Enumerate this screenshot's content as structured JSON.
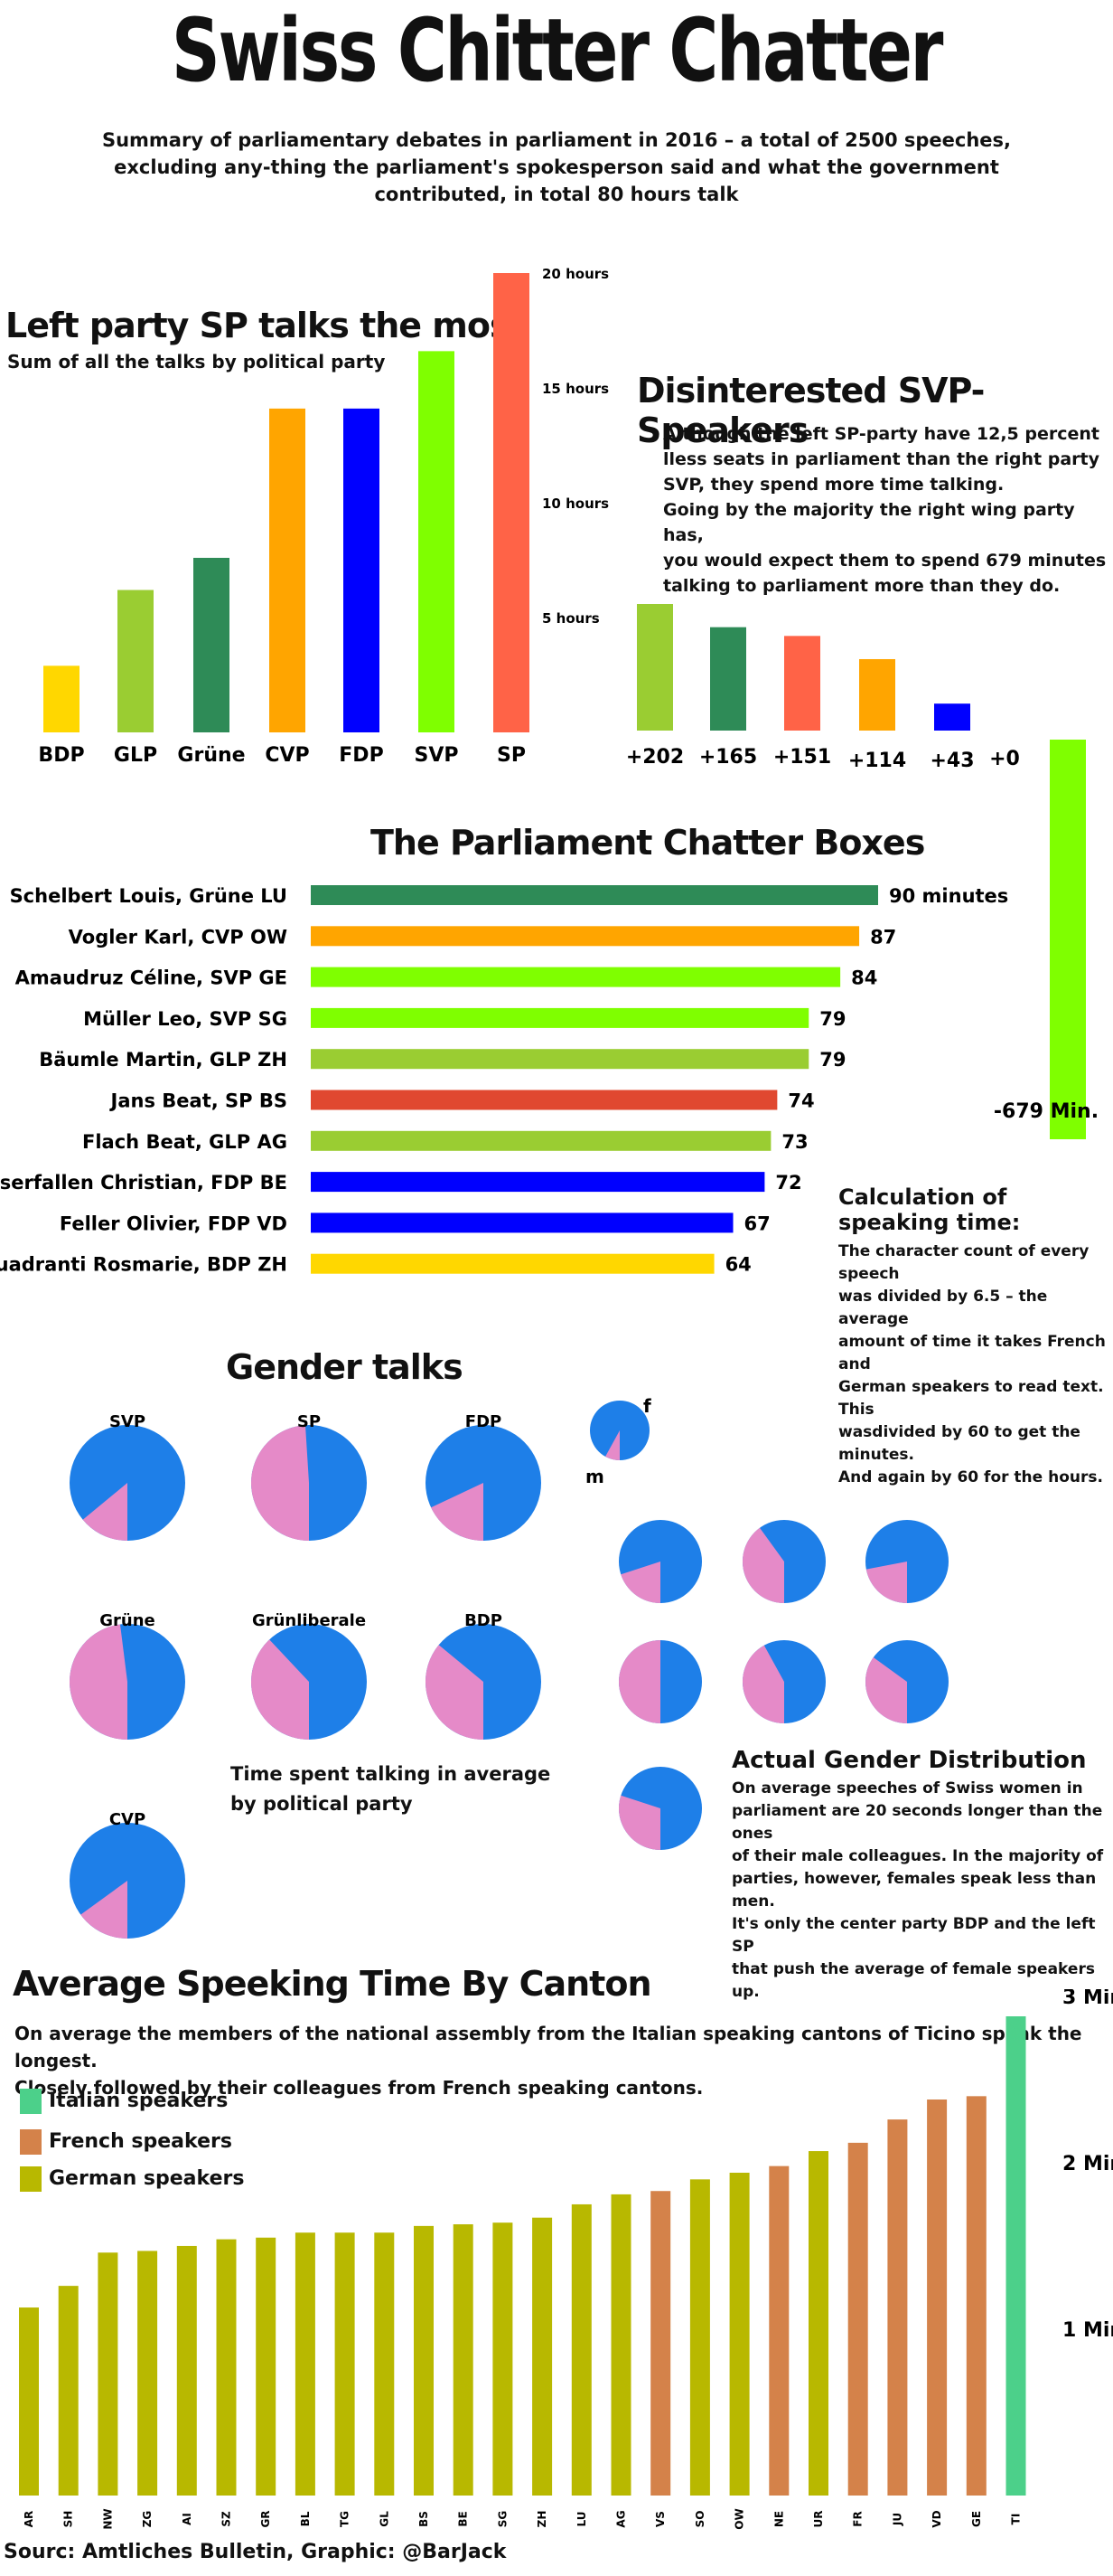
{
  "title": "Swiss Chitter Chatter",
  "subtitle": "Summary of parliamentary debates in parliament in 2016 – a total of 2500 speeches, excluding any-thing the parliament's spokesperson said and what the government contributed, in total 80 hours talk",
  "colors": {
    "BDP": "#FFD700",
    "GLP": "#9ACD32",
    "Grüne": "#2E8B57",
    "CVP": "#FFA500",
    "FDP": "#0000FF",
    "SVP": "#7FFF00",
    "SP": "#FF6347",
    "SP_dark": "#E04830",
    "male": "#1E7FE8",
    "female": "#E58AC8",
    "italian": "#4CD08A",
    "french": "#D4824A",
    "german": "#B8B800"
  },
  "party_chart": {
    "heading": "Left party SP talks the most",
    "subheading": "Sum of all the talks by political party",
    "y_ticks": [
      "5 hours",
      "10 hours",
      "15 hours",
      "20 hours"
    ],
    "chart_data": {
      "type": "bar",
      "categories": [
        "BDP",
        "GLP",
        "Grüne",
        "CVP",
        "FDP",
        "SVP",
        "SP"
      ],
      "values": [
        2.9,
        6.2,
        7.6,
        14.1,
        14.1,
        16.6,
        20.0
      ],
      "ylabel": "",
      "ylim": [
        0,
        20
      ]
    }
  },
  "svp_chart": {
    "heading": "Disinterested SVP-Speakers",
    "text_lines": [
      "Although the left SP-party have 12,5 percent",
      "lless seats in parliament than the right party",
      "SVP, they spend more time talking.",
      "Going by the majority the right wing party has,",
      "you would expect them to spend 679 minutes",
      "talking to parliament more than they do."
    ],
    "chart_data": {
      "type": "bar",
      "categories": [
        "GLP",
        "Grüne",
        "SP",
        "CVP",
        "FDP",
        "BDP",
        "SVP"
      ],
      "values": [
        202,
        165,
        151,
        114,
        43,
        0,
        -679
      ],
      "labels": [
        "+202",
        "+165",
        "+151",
        "+114",
        "+43",
        "+0",
        "-679 Min."
      ]
    }
  },
  "chatter_boxes": {
    "heading": "The Parliament Chatter Boxes",
    "chart_data": {
      "type": "bar",
      "categories": [
        "Schelbert Louis, Grüne LU",
        "Vogler Karl, CVP OW",
        "Amaudruz Céline, SVP GE",
        "Müller Leo, SVP SG",
        "Bäumle Martin, GLP ZH",
        "Jans Beat, SP BS",
        "Flach Beat, GLP AG",
        "Wasserfallen Christian, FDP BE",
        "Feller Olivier, FDP VD",
        "Quadranti Rosmarie, BDP ZH"
      ],
      "values": [
        90,
        87,
        84,
        79,
        79,
        74,
        73,
        72,
        67,
        64
      ],
      "parties": [
        "Grüne",
        "CVP",
        "SVP",
        "SVP",
        "GLP",
        "SP_dark",
        "GLP",
        "FDP",
        "FDP",
        "BDP"
      ],
      "value_labels": [
        "90 minutes",
        "87",
        "84",
        "79",
        "79",
        "74",
        "73",
        "72",
        "67",
        "64"
      ]
    }
  },
  "calc_box": {
    "heading": "Calculation of speaking time:",
    "lines": [
      "The character count of every speech",
      "was divided by 6.5 – the average",
      "amount of time it takes French and",
      "German speakers to read text. This",
      "wasdivided by 60 to get the minutes.",
      "And again by 60 for the hours."
    ]
  },
  "gender": {
    "heading": "Gender talks",
    "legend_f": "f",
    "legend_m": "m",
    "caption_lines": [
      "Time spent talking in average",
      "by political party"
    ],
    "chart_data": {
      "type": "pie",
      "series": [
        {
          "name": "SVP",
          "female_share": 0.14
        },
        {
          "name": "SP",
          "female_share": 0.49
        },
        {
          "name": "FDP",
          "female_share": 0.18
        },
        {
          "name": "Grüne",
          "female_share": 0.48
        },
        {
          "name": "Grünliberale",
          "female_share": 0.38
        },
        {
          "name": "BDP",
          "female_share": 0.36
        },
        {
          "name": "CVP",
          "female_share": 0.15
        }
      ]
    },
    "actual": {
      "heading": "Actual Gender Distribution",
      "lines": [
        "On average speeches of Swiss women in",
        "parliament are 20 seconds longer than the ones",
        "of their male colleagues. In the majority of",
        "parties, however, females speak less than men.",
        "It's only the center party BDP and the left SP",
        "that push the average of female speakers up."
      ],
      "female_shares": [
        0.2,
        0.4,
        0.22,
        0.5,
        0.42,
        0.35,
        0.3
      ]
    }
  },
  "canton": {
    "heading": "Average Speeking Time By Canton",
    "text_lines": [
      "On average the members of the national assembly from the Italian speaking cantons of Ticino speak the longest.",
      "Closely followed by their colleagues from French speaking cantons."
    ],
    "legend": [
      "Italian speakers",
      "French speakers",
      "German speakers"
    ],
    "y_ticks": [
      "1 Min",
      "2 Min",
      "3 Min"
    ],
    "chart_data": {
      "type": "bar",
      "categories": [
        "AR",
        "SH",
        "NW",
        "ZG",
        "AI",
        "SZ",
        "GR",
        "BL",
        "TG",
        "GL",
        "BS",
        "BE",
        "SG",
        "ZH",
        "LU",
        "AG",
        "VS",
        "SO",
        "OW",
        "NE",
        "UR",
        "FR",
        "JU",
        "VD",
        "GE",
        "TI"
      ],
      "values": [
        1.13,
        1.26,
        1.46,
        1.47,
        1.5,
        1.54,
        1.55,
        1.58,
        1.58,
        1.58,
        1.62,
        1.63,
        1.64,
        1.67,
        1.75,
        1.81,
        1.83,
        1.9,
        1.94,
        1.98,
        2.07,
        2.12,
        2.26,
        2.38,
        2.4,
        2.88
      ],
      "language": [
        "german",
        "german",
        "german",
        "german",
        "german",
        "german",
        "german",
        "german",
        "german",
        "german",
        "german",
        "german",
        "german",
        "german",
        "german",
        "german",
        "french",
        "german",
        "german",
        "french",
        "german",
        "french",
        "french",
        "french",
        "french",
        "italian"
      ],
      "ylim": [
        0,
        3
      ]
    }
  },
  "source": "Sourc: Amtliches Bulletin, Graphic: @BarJack"
}
